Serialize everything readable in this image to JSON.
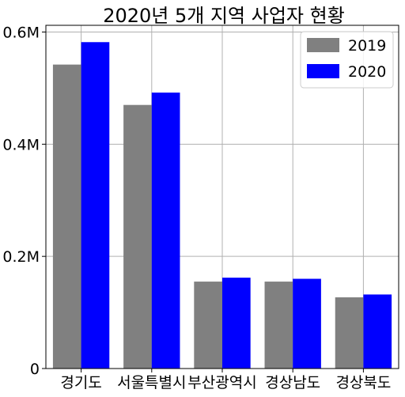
{
  "chart_data": {
    "type": "bar",
    "title": "2020년 5개 지역 사업자 현황",
    "xlabel": "",
    "ylabel": "",
    "categories": [
      "경기도",
      "서울특별시",
      "부산광역시",
      "경상남도",
      "경상북도"
    ],
    "series": [
      {
        "name": "2019",
        "color": "#808080",
        "values": [
          542000,
          470000,
          155000,
          155000,
          127000
        ]
      },
      {
        "name": "2020",
        "color": "#0000ff",
        "values": [
          582000,
          492000,
          162000,
          160000,
          132000
        ]
      }
    ],
    "ylim": [
      0,
      612000
    ],
    "yticks": [
      {
        "value": 0,
        "label": "0"
      },
      {
        "value": 200000,
        "label": "0.2M"
      },
      {
        "value": 400000,
        "label": "0.4M"
      },
      {
        "value": 600000,
        "label": "0.6M"
      }
    ],
    "grid": true,
    "legend_position": "top-right"
  }
}
